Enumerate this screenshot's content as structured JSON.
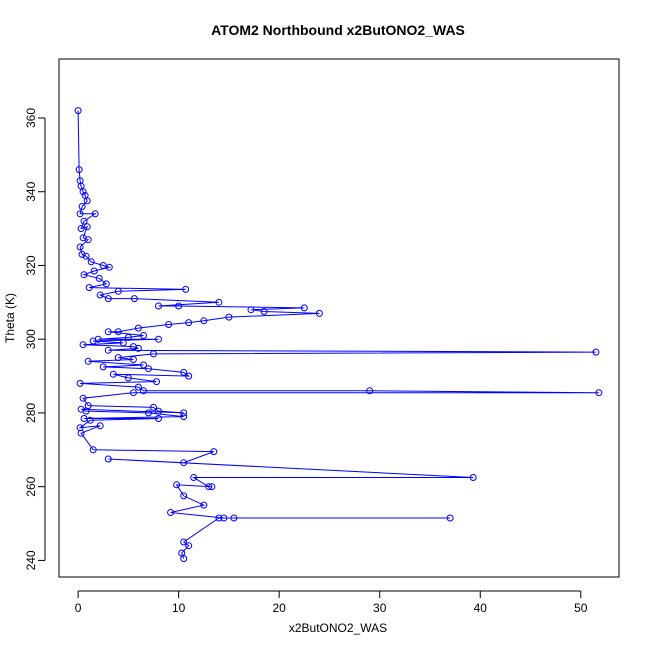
{
  "chart_data": {
    "type": "scatter",
    "title": "ATOM2 Northbound x2ButONO2_WAS",
    "xlabel": "x2ButONO2_WAS",
    "ylabel": "Theta (K)",
    "xlim": [
      -1.9,
      53.8
    ],
    "ylim": [
      235.5,
      376
    ],
    "xticks": [
      0,
      10,
      20,
      30,
      40,
      50
    ],
    "yticks": [
      240,
      260,
      280,
      300,
      320,
      340,
      360
    ],
    "grid": false,
    "legend": "none",
    "connect_points": true,
    "colors": {
      "series": "#0000ff",
      "axes": "#000000"
    },
    "series": [
      {
        "values": [
          [
            0.0,
            362.0
          ],
          [
            0.1,
            346.0
          ],
          [
            0.2,
            343.0
          ],
          [
            0.3,
            341.5
          ],
          [
            0.5,
            340.0
          ],
          [
            0.7,
            339.0
          ],
          [
            0.9,
            337.5
          ],
          [
            0.4,
            336.0
          ],
          [
            0.2,
            334.0
          ],
          [
            1.7,
            334.0
          ],
          [
            0.6,
            332.0
          ],
          [
            0.3,
            330.0
          ],
          [
            0.9,
            330.5
          ],
          [
            0.5,
            327.5
          ],
          [
            1.0,
            327.0
          ],
          [
            0.2,
            325.0
          ],
          [
            0.4,
            323.0
          ],
          [
            0.8,
            322.5
          ],
          [
            1.3,
            321.0
          ],
          [
            2.5,
            320.0
          ],
          [
            3.1,
            319.5
          ],
          [
            1.6,
            318.5
          ],
          [
            0.6,
            317.5
          ],
          [
            2.1,
            316.5
          ],
          [
            2.8,
            315.0
          ],
          [
            1.1,
            314.0
          ],
          [
            10.7,
            313.5
          ],
          [
            4.0,
            313.0
          ],
          [
            2.2,
            312.0
          ],
          [
            3.0,
            311.0
          ],
          [
            5.6,
            311.0
          ],
          [
            14.0,
            310.0
          ],
          [
            8.0,
            309.0
          ],
          [
            10.0,
            309.0
          ],
          [
            22.5,
            308.5
          ],
          [
            17.2,
            308.0
          ],
          [
            18.5,
            307.5
          ],
          [
            24.0,
            307.0
          ],
          [
            15.0,
            306.0
          ],
          [
            12.5,
            305.0
          ],
          [
            11.0,
            304.5
          ],
          [
            9.0,
            304.0
          ],
          [
            6.0,
            303.0
          ],
          [
            4.0,
            302.0
          ],
          [
            3.0,
            302.0
          ],
          [
            6.5,
            301.0
          ],
          [
            5.0,
            300.5
          ],
          [
            2.0,
            300.0
          ],
          [
            8.0,
            300.0
          ],
          [
            1.5,
            299.5
          ],
          [
            4.5,
            299.0
          ],
          [
            0.5,
            298.5
          ],
          [
            5.5,
            298.0
          ],
          [
            6.0,
            297.5
          ],
          [
            3.0,
            297.0
          ],
          [
            51.5,
            296.5
          ],
          [
            7.5,
            296.0
          ],
          [
            4.0,
            295.0
          ],
          [
            5.5,
            294.5
          ],
          [
            1.0,
            294.0
          ],
          [
            6.5,
            293.0
          ],
          [
            2.5,
            292.5
          ],
          [
            7.0,
            292.0
          ],
          [
            10.5,
            291.0
          ],
          [
            11.0,
            290.0
          ],
          [
            3.5,
            290.5
          ],
          [
            5.0,
            289.5
          ],
          [
            7.8,
            288.5
          ],
          [
            0.2,
            288.0
          ],
          [
            6.0,
            287.0
          ],
          [
            6.5,
            286.0
          ],
          [
            29.0,
            286.0
          ],
          [
            51.8,
            285.5
          ],
          [
            5.5,
            285.5
          ],
          [
            0.5,
            284.0
          ],
          [
            1.0,
            282.0
          ],
          [
            7.5,
            281.5
          ],
          [
            8.0,
            280.5
          ],
          [
            10.5,
            280.0
          ],
          [
            0.3,
            281.0
          ],
          [
            0.8,
            280.5
          ],
          [
            7.0,
            280.0
          ],
          [
            10.5,
            279.0
          ],
          [
            0.6,
            278.5
          ],
          [
            8.0,
            278.5
          ],
          [
            1.2,
            278.0
          ],
          [
            0.2,
            276.0
          ],
          [
            2.2,
            276.5
          ],
          [
            0.3,
            274.5
          ],
          [
            1.5,
            270.0
          ],
          [
            13.5,
            269.5
          ],
          [
            10.5,
            266.5
          ],
          [
            3.0,
            267.5
          ],
          [
            39.3,
            262.5
          ],
          [
            11.5,
            262.5
          ],
          [
            13.0,
            260.0
          ],
          [
            13.3,
            260.0
          ],
          [
            9.8,
            260.5
          ],
          [
            10.5,
            257.5
          ],
          [
            12.5,
            255.0
          ],
          [
            9.2,
            253.0
          ],
          [
            14.5,
            251.5
          ],
          [
            15.5,
            251.5
          ],
          [
            37.0,
            251.5
          ],
          [
            14.0,
            251.5
          ],
          [
            10.5,
            245.0
          ],
          [
            11.0,
            244.0
          ],
          [
            10.3,
            242.0
          ],
          [
            10.5,
            240.5
          ]
        ]
      }
    ]
  }
}
